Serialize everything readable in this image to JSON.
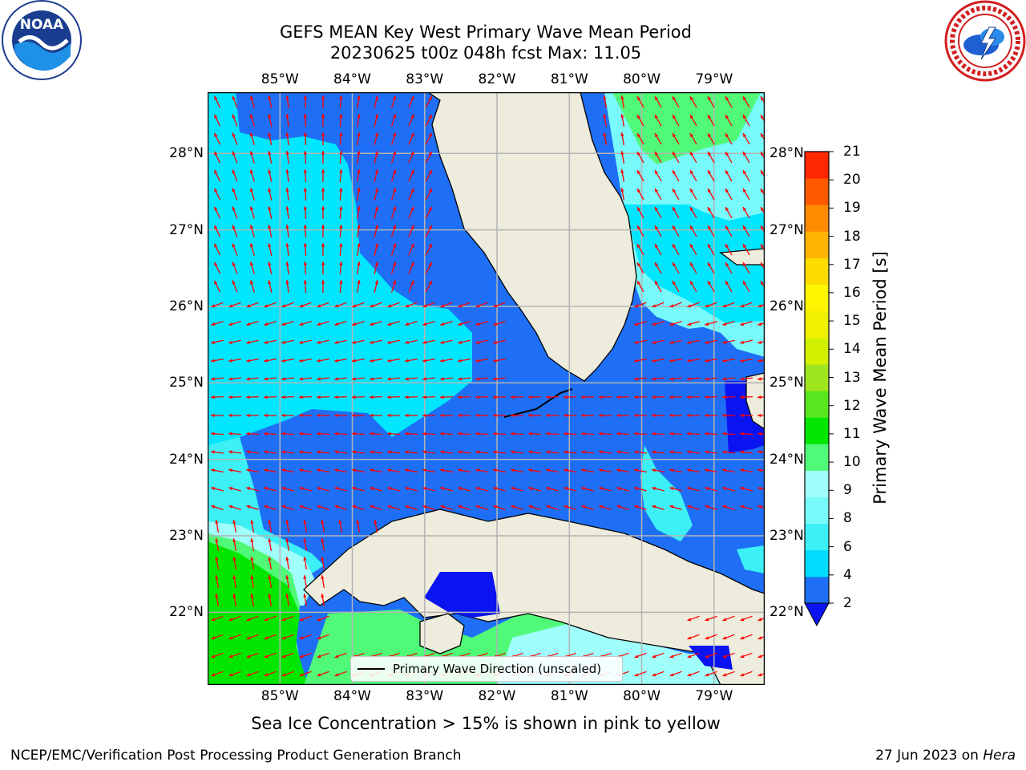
{
  "title": {
    "line1": "GEFS MEAN Key West Primary Wave Mean Period",
    "line2": "20230625 t00z 048h fcst   Max: 11.05"
  },
  "axes": {
    "lon_labels": [
      "85°W",
      "84°W",
      "83°W",
      "82°W",
      "81°W",
      "80°W",
      "79°W"
    ],
    "lat_labels": [
      "28°N",
      "27°N",
      "26°N",
      "25°N",
      "24°N",
      "23°N",
      "22°N"
    ],
    "lon_range": [
      -86.0,
      -78.3
    ],
    "lat_range": [
      21.05,
      28.8
    ],
    "grid": true
  },
  "legend": {
    "label": "Primary Wave Direction (unscaled)",
    "placement": "lower-center"
  },
  "colorbar": {
    "label": "Primary Wave Mean Period [s]",
    "ticks": [
      "21",
      "20",
      "19",
      "18",
      "17",
      "16",
      "15",
      "14",
      "13",
      "12",
      "11",
      "10",
      "9",
      "8",
      "6",
      "4",
      "2"
    ],
    "levels": [
      2,
      4,
      6,
      7,
      8,
      9,
      10,
      11,
      12,
      13,
      14,
      15,
      16,
      17,
      18,
      19,
      20,
      21
    ],
    "colors": [
      "#1e6ff5",
      "#00dcff",
      "#3cf0f5",
      "#78fafa",
      "#a0fffa",
      "#50fa78",
      "#00e600",
      "#5ae61e",
      "#a0e61e",
      "#d2f000",
      "#f0f000",
      "#fff500",
      "#ffdc00",
      "#ffb400",
      "#ff8c00",
      "#ff5a00",
      "#ff2800"
    ],
    "extend_below_color": "#0a14f0"
  },
  "note": "Sea Ice Concentration > 15% is shown in pink to yellow",
  "footer": {
    "left": "NCEP/EMC/Verification Post Processing Product Generation Branch",
    "right_date": "27 Jun 2023 on ",
    "right_machine": "Hera"
  },
  "colors": {
    "land": "#eeecdc",
    "coast": "#000000",
    "grid": "#b4b4b4",
    "arrow": "#ff0000",
    "period_2_4": "#1e6ff5",
    "period_4_6": "#00e6ff",
    "period_6_7": "#3cf0f5",
    "period_7_8": "#78fafa",
    "period_8_9": "#a0fffa",
    "period_9_10": "#50fa78",
    "period_10_11": "#00e600",
    "period_below_2": "#0a14f0"
  },
  "logos": {
    "left": "noaa-logo",
    "right": "nws-logo",
    "left_text": "NOAA"
  }
}
